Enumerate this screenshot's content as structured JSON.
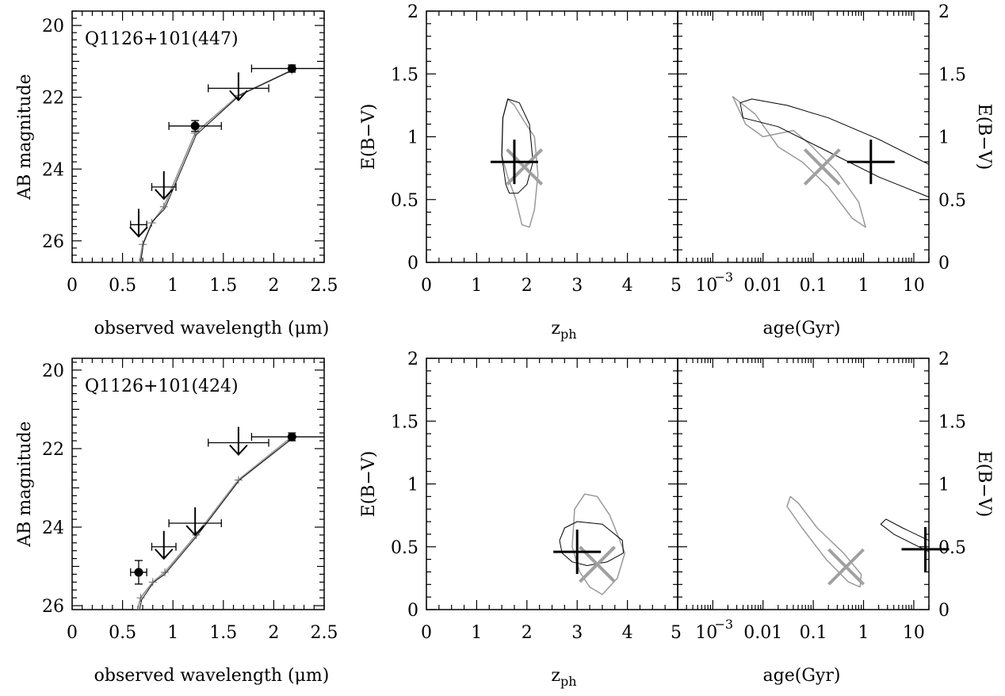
{
  "chart_data": [
    {
      "id": "sed-top",
      "type": "scatter",
      "title": "Q1126+101(447)",
      "xlabel": "observed wavelength (μm)",
      "ylabel": "AB magnitude",
      "xlim": [
        0,
        2.5
      ],
      "ylim": [
        26.6,
        19.6
      ],
      "x_ticks": [
        "0",
        "0.5",
        "1",
        "1.5",
        "2",
        "2.5"
      ],
      "y_ticks": [
        "20",
        "22",
        "24",
        "26"
      ],
      "detections": [
        {
          "x": 1.22,
          "y": 22.8,
          "xerr": 0.26,
          "yerr": 0.15
        },
        {
          "x": 2.18,
          "y": 21.2,
          "xerr": 0.4,
          "yerr": 0.1
        }
      ],
      "upper_limits": [
        {
          "x": 0.66,
          "y": 25.55,
          "xerr": 0.08
        },
        {
          "x": 0.91,
          "y": 24.5,
          "xerr": 0.12
        },
        {
          "x": 1.65,
          "y": 21.75,
          "xerr": 0.3
        }
      ],
      "model_gray": [
        [
          0.67,
          26.6
        ],
        [
          0.7,
          26.1
        ],
        [
          0.79,
          25.5
        ],
        [
          0.91,
          25.05
        ],
        [
          1.22,
          23.0
        ],
        [
          1.65,
          21.95
        ],
        [
          2.18,
          21.25
        ]
      ],
      "model_black": [
        [
          0.68,
          26.6
        ],
        [
          0.71,
          26.05
        ],
        [
          0.8,
          25.45
        ],
        [
          0.92,
          25.1
        ],
        [
          1.23,
          23.05
        ],
        [
          1.66,
          21.95
        ],
        [
          2.18,
          21.25
        ]
      ]
    },
    {
      "id": "ebv-z-top",
      "type": "scatter",
      "xlabel": "z",
      "xlabel_sub": "ph",
      "ylabel": "E(B−V)",
      "xlim": [
        0,
        5
      ],
      "ylim": [
        0,
        2
      ],
      "x_ticks": [
        "0",
        "1",
        "2",
        "3",
        "4",
        "5"
      ],
      "y_ticks": [
        "0",
        "0.5",
        "1",
        "1.5",
        "2"
      ],
      "contour_black": [
        [
          1.58,
          0.62
        ],
        [
          1.5,
          0.85
        ],
        [
          1.52,
          1.15
        ],
        [
          1.62,
          1.3
        ],
        [
          1.85,
          1.27
        ],
        [
          2.05,
          1.1
        ],
        [
          2.12,
          0.8
        ],
        [
          2.0,
          0.62
        ],
        [
          1.82,
          0.55
        ],
        [
          1.65,
          0.55
        ]
      ],
      "contour_gray": [
        [
          1.9,
          0.3
        ],
        [
          1.78,
          0.5
        ],
        [
          1.62,
          0.68
        ],
        [
          1.5,
          0.85
        ],
        [
          1.52,
          1.15
        ],
        [
          1.62,
          1.3
        ],
        [
          1.75,
          1.25
        ],
        [
          1.95,
          1.12
        ],
        [
          2.15,
          1.0
        ],
        [
          2.22,
          0.7
        ],
        [
          2.15,
          0.42
        ],
        [
          2.05,
          0.28
        ]
      ],
      "best_black": {
        "x": 1.75,
        "y": 0.8
      },
      "best_gray": {
        "x": 1.95,
        "y": 0.76
      }
    },
    {
      "id": "ebv-age-top",
      "type": "scatter",
      "xlabel": "age(Gyr)",
      "ylabel": "E(B−V)",
      "xscale": "log",
      "xlim": [
        0.0002,
        20
      ],
      "ylim": [
        0,
        2
      ],
      "x_ticks": [
        "10",
        "0.01",
        "0.1",
        "1",
        "10"
      ],
      "x_tick_sup": "−3",
      "y_ticks": [
        "0",
        "0.5",
        "1",
        "1.5",
        "2"
      ],
      "contour_black": [
        [
          0.0035,
          1.27
        ],
        [
          0.006,
          1.3
        ],
        [
          0.03,
          1.25
        ],
        [
          0.2,
          1.15
        ],
        [
          2,
          0.98
        ],
        [
          20,
          0.78
        ],
        [
          20,
          0.52
        ],
        [
          2,
          0.68
        ],
        [
          0.2,
          0.88
        ],
        [
          0.02,
          1.08
        ],
        [
          0.004,
          1.15
        ]
      ],
      "contour_gray": [
        [
          0.0025,
          1.32
        ],
        [
          0.0045,
          1.1
        ],
        [
          0.01,
          1.0
        ],
        [
          0.04,
          1.05
        ],
        [
          0.08,
          0.95
        ],
        [
          0.3,
          0.72
        ],
        [
          0.8,
          0.48
        ],
        [
          1.1,
          0.28
        ],
        [
          0.6,
          0.35
        ],
        [
          0.2,
          0.6
        ],
        [
          0.06,
          0.8
        ],
        [
          0.02,
          0.92
        ],
        [
          0.007,
          1.18
        ]
      ],
      "best_black": {
        "x": 1.4,
        "y": 0.8
      },
      "best_gray": {
        "x": 0.15,
        "y": 0.76
      }
    },
    {
      "id": "sed-bottom",
      "type": "scatter",
      "title": "Q1126+101(424)",
      "xlabel": "observed wavelength (μm)",
      "ylabel": "AB magnitude",
      "xlim": [
        0,
        2.5
      ],
      "ylim": [
        26.1,
        19.7
      ],
      "x_ticks": [
        "0",
        "0.5",
        "1",
        "1.5",
        "2",
        "2.5"
      ],
      "y_ticks": [
        "20",
        "22",
        "24",
        "26"
      ],
      "detections": [
        {
          "x": 0.66,
          "y": 25.15,
          "xerr": 0.08,
          "yerr": 0.3
        },
        {
          "x": 2.18,
          "y": 21.7,
          "xerr": 0.4,
          "yerr": 0.1
        }
      ],
      "upper_limits": [
        {
          "x": 0.91,
          "y": 24.5,
          "xerr": 0.12
        },
        {
          "x": 1.22,
          "y": 23.9,
          "xerr": 0.26
        },
        {
          "x": 1.65,
          "y": 21.85,
          "xerr": 0.3
        }
      ],
      "model_gray": [
        [
          0.65,
          26.1
        ],
        [
          0.68,
          25.8
        ],
        [
          0.8,
          25.4
        ],
        [
          0.92,
          25.15
        ],
        [
          1.23,
          24.2
        ],
        [
          1.65,
          22.8
        ],
        [
          2.18,
          21.7
        ]
      ],
      "model_black": [
        [
          0.67,
          26.1
        ],
        [
          0.69,
          25.85
        ],
        [
          0.81,
          25.4
        ],
        [
          0.92,
          25.2
        ],
        [
          1.23,
          24.25
        ],
        [
          1.66,
          22.8
        ],
        [
          2.18,
          21.75
        ]
      ]
    },
    {
      "id": "ebv-z-bottom",
      "type": "scatter",
      "xlabel": "z",
      "xlabel_sub": "ph",
      "ylabel": "E(B−V)",
      "xlim": [
        0,
        5
      ],
      "ylim": [
        0,
        2
      ],
      "x_ticks": [
        "0",
        "1",
        "2",
        "3",
        "4",
        "5"
      ],
      "y_ticks": [
        "0",
        "0.5",
        "1",
        "1.5",
        "2"
      ],
      "contour_black": [
        [
          2.65,
          0.55
        ],
        [
          2.75,
          0.65
        ],
        [
          3.0,
          0.7
        ],
        [
          3.5,
          0.68
        ],
        [
          3.9,
          0.55
        ],
        [
          3.92,
          0.45
        ],
        [
          3.6,
          0.38
        ],
        [
          3.2,
          0.35
        ],
        [
          2.9,
          0.38
        ],
        [
          2.7,
          0.45
        ]
      ],
      "contour_gray": [
        [
          2.95,
          0.8
        ],
        [
          3.15,
          0.92
        ],
        [
          3.4,
          0.9
        ],
        [
          3.65,
          0.75
        ],
        [
          3.95,
          0.45
        ],
        [
          3.8,
          0.25
        ],
        [
          3.5,
          0.12
        ],
        [
          3.25,
          0.18
        ],
        [
          3.05,
          0.3
        ],
        [
          2.9,
          0.5
        ]
      ],
      "best_black": {
        "x": 3.0,
        "y": 0.46
      },
      "best_gray": {
        "x": 3.4,
        "y": 0.36
      }
    },
    {
      "id": "ebv-age-bottom",
      "type": "scatter",
      "xlabel": "age(Gyr)",
      "ylabel": "E(B−V)",
      "xscale": "log",
      "xlim": [
        0.0002,
        20
      ],
      "ylim": [
        0,
        2
      ],
      "x_ticks": [
        "10",
        "0.01",
        "0.1",
        "1",
        "10"
      ],
      "x_tick_sup": "−3",
      "y_ticks": [
        "0",
        "0.5",
        "1",
        "1.5",
        "2"
      ],
      "contour_black": [
        [
          2.8,
          0.72
        ],
        [
          6,
          0.65
        ],
        [
          20,
          0.55
        ],
        [
          20,
          0.46
        ],
        [
          10,
          0.52
        ],
        [
          4,
          0.6
        ],
        [
          2.2,
          0.68
        ]
      ],
      "contour_gray": [
        [
          0.035,
          0.9
        ],
        [
          0.05,
          0.85
        ],
        [
          0.12,
          0.65
        ],
        [
          0.4,
          0.45
        ],
        [
          0.9,
          0.28
        ],
        [
          0.85,
          0.18
        ],
        [
          0.5,
          0.22
        ],
        [
          0.18,
          0.4
        ],
        [
          0.06,
          0.65
        ],
        [
          0.03,
          0.82
        ]
      ],
      "best_black": {
        "x": 17,
        "y": 0.48
      },
      "best_gray": {
        "x": 0.45,
        "y": 0.34
      }
    }
  ]
}
